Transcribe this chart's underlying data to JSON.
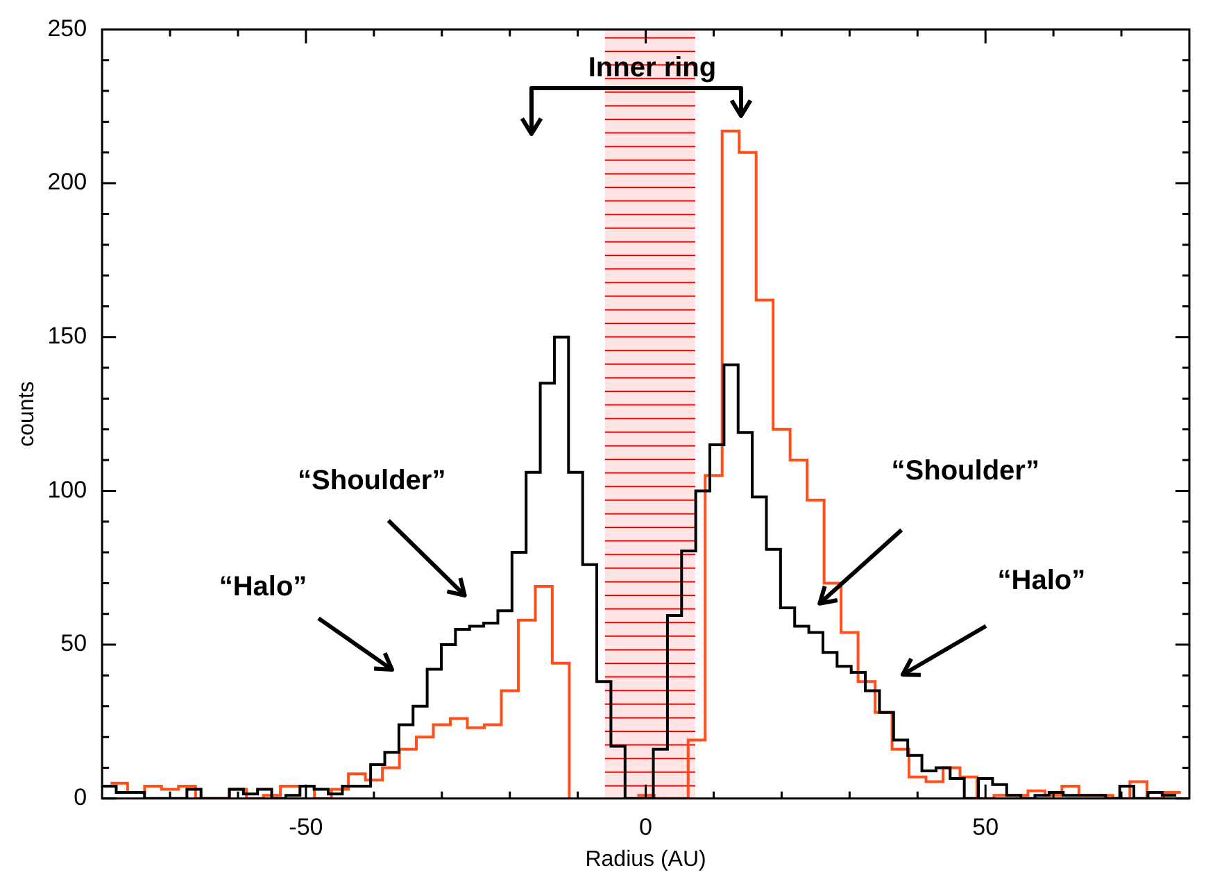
{
  "chart_data": {
    "type": "step",
    "xlabel": "Radius (AU)",
    "ylabel": "counts",
    "xlim": [
      -80,
      80
    ],
    "ylim": [
      0,
      250
    ],
    "xticks": [
      {
        "value": -70,
        "label": null
      },
      {
        "value": -60,
        "label": null
      },
      -50,
      {
        "value": -40,
        "label": null
      },
      {
        "value": -30,
        "label": null
      },
      {
        "value": -20,
        "label": null
      },
      {
        "value": -10,
        "label": null
      },
      0,
      {
        "value": 10,
        "label": null
      },
      {
        "value": 20,
        "label": null
      },
      {
        "value": 30,
        "label": null
      },
      {
        "value": 40,
        "label": null
      },
      50,
      {
        "value": 60,
        "label": null
      },
      {
        "value": 70,
        "label": null
      }
    ],
    "yticks": [
      0,
      {
        "value": 10,
        "label": null
      },
      {
        "value": 20,
        "label": null
      },
      {
        "value": 30,
        "label": null
      },
      {
        "value": 40,
        "label": null
      },
      50,
      {
        "value": 60,
        "label": null
      },
      {
        "value": 70,
        "label": null
      },
      {
        "value": 80,
        "label": null
      },
      {
        "value": 90,
        "label": null
      },
      100,
      {
        "value": 110,
        "label": null
      },
      {
        "value": 120,
        "label": null
      },
      {
        "value": 130,
        "label": null
      },
      {
        "value": 140,
        "label": null
      },
      150,
      {
        "value": 160,
        "label": null
      },
      {
        "value": 170,
        "label": null
      },
      {
        "value": 180,
        "label": null
      },
      {
        "value": 190,
        "label": null
      },
      200,
      {
        "value": 210,
        "label": null
      },
      {
        "value": 220,
        "label": null
      },
      {
        "value": 230,
        "label": null
      },
      {
        "value": 240,
        "label": null
      },
      250
    ],
    "bands": [
      {
        "axis": "x",
        "from": -6,
        "to": 7.3,
        "color": "#ff0000"
      }
    ],
    "annotations": [
      "Inner ring",
      "“Shoulder”",
      "“Halo”",
      "“Shoulder”",
      "“Halo”"
    ],
    "series": [
      {
        "color": "#000000",
        "x": [
          -80,
          -77.92,
          -75.84,
          -73.76,
          -71.68,
          -69.6,
          -67.52,
          -65.44,
          -63.36,
          -61.28,
          -59.2,
          -57.12,
          -55.04,
          -52.96,
          -50.88,
          -48.8,
          -46.72,
          -44.64,
          -42.56,
          -40.48,
          -38.4,
          -36.32,
          -34.24,
          -32.16,
          -30.08,
          -28,
          -25.92,
          -23.84,
          -21.76,
          -19.68,
          -17.6,
          -15.52,
          -13.44,
          -11.36,
          -9.28,
          -7.2,
          -5.12,
          -3.04,
          -0.96,
          1.12,
          3.2,
          5.28,
          7.36,
          9.44,
          11.52,
          13.6,
          15.68,
          17.76,
          19.84,
          21.92,
          24,
          26.08,
          28.16,
          30.24,
          32.32,
          34.4,
          36.48,
          38.56,
          40.64,
          42.72,
          44.8,
          46.88,
          48.96,
          51.04,
          53.12,
          55.2,
          57.28,
          59.36,
          61.44,
          63.52,
          65.6,
          67.68,
          69.76,
          71.84,
          73.92,
          76,
          78.08
        ],
        "values": [
          4,
          2,
          2,
          0,
          0,
          0,
          3,
          0,
          0,
          3,
          1.5,
          3,
          0,
          1,
          4,
          3,
          1.5,
          4,
          4,
          11,
          15,
          24,
          30,
          42,
          50,
          55,
          56,
          57,
          61,
          80,
          106,
          135,
          150,
          106,
          76,
          38,
          17,
          0,
          0,
          16,
          59.5,
          80.5,
          100,
          115,
          141,
          119,
          98,
          81,
          62,
          56,
          54,
          47.5,
          43,
          41,
          35,
          28,
          19,
          14,
          9,
          10,
          6.5,
          0,
          6.5,
          4.5,
          1,
          0,
          1,
          2,
          1,
          1,
          1,
          0,
          4,
          0,
          2,
          1,
          1
        ]
      },
      {
        "color": "#ff4f1a",
        "x": [
          -78.75,
          -76.25,
          -73.75,
          -71.25,
          -68.75,
          -66.25,
          -63.75,
          -61.25,
          -58.75,
          -56.25,
          -53.75,
          -51.25,
          -48.75,
          -46.25,
          -43.75,
          -41.25,
          -38.75,
          -36.25,
          -33.75,
          -31.25,
          -28.75,
          -26.25,
          -23.75,
          -21.25,
          -18.75,
          -16.25,
          -13.75,
          -11.25,
          -8.75,
          -6.25,
          -3.75,
          -1.25,
          1.25,
          3.75,
          6.25,
          8.75,
          11.25,
          13.75,
          16.25,
          18.75,
          21.25,
          23.75,
          26.25,
          28.75,
          31.25,
          33.75,
          36.25,
          38.75,
          41.25,
          43.75,
          46.25,
          48.75,
          51.25,
          53.75,
          56.25,
          58.75,
          61.25,
          63.75,
          66.25,
          68.75,
          71.25,
          73.75,
          76.25,
          78.75
        ],
        "values": [
          5,
          2,
          4,
          3,
          4,
          0,
          0,
          3,
          0,
          1,
          4,
          4,
          0,
          3,
          8,
          6,
          10,
          16,
          20,
          24,
          26,
          23,
          24,
          35,
          58,
          69,
          44,
          0,
          null,
          null,
          null,
          1,
          0,
          0,
          19,
          105,
          217,
          210,
          162,
          120,
          110,
          97,
          70,
          54,
          38,
          28,
          16,
          7,
          5.5,
          10,
          7,
          0,
          1,
          1,
          2.5,
          1,
          4,
          1,
          1,
          0,
          5.5,
          0,
          2,
          2
        ]
      }
    ]
  }
}
